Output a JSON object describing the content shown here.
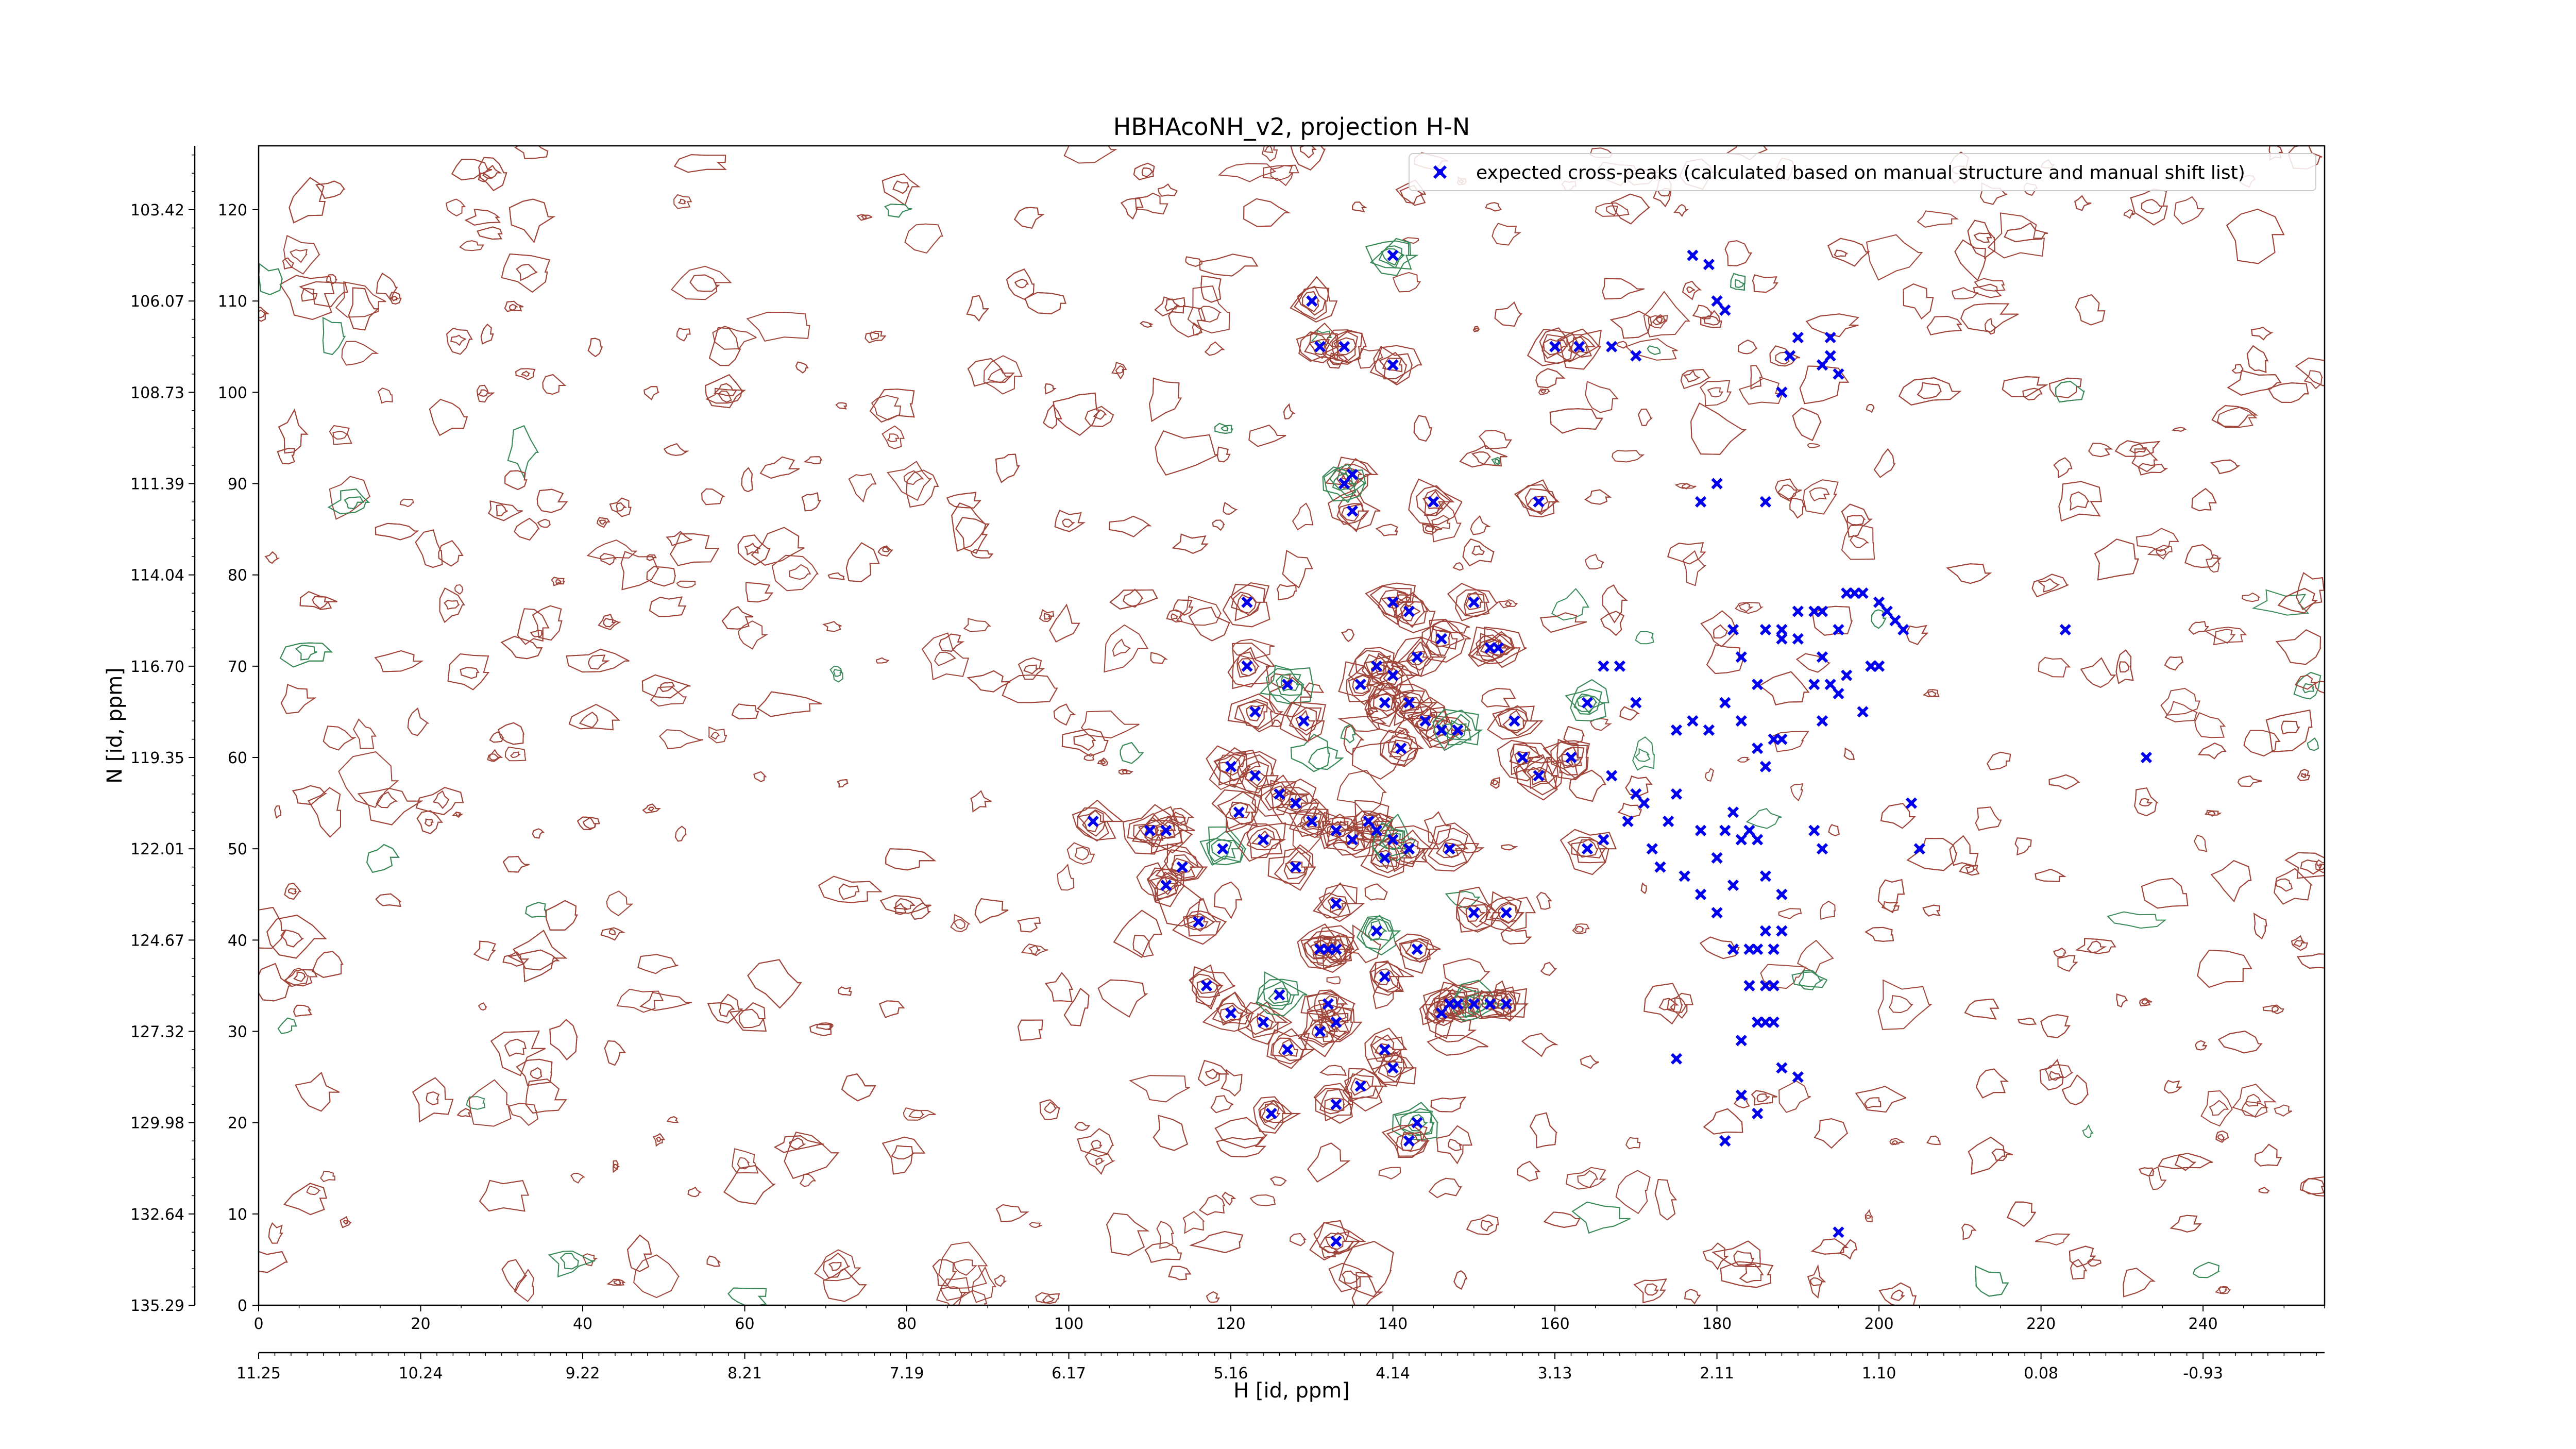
{
  "chart_data": {
    "type": "scatter",
    "title": "HBHAcoNH_v2, projection H-N",
    "xlabel": "H [id, ppm]",
    "ylabel": "N [id, ppm]",
    "x_index_ticks": [
      "0",
      "20",
      "40",
      "60",
      "80",
      "100",
      "120",
      "140",
      "160",
      "180",
      "200",
      "220",
      "240"
    ],
    "x_ppm_ticks": [
      "11.25",
      "10.24",
      "9.22",
      "8.21",
      "7.19",
      "6.17",
      "5.16",
      "4.14",
      "3.13",
      "2.11",
      "1.10",
      "0.08",
      "-0.93"
    ],
    "y_index_ticks": [
      "0",
      "10",
      "20",
      "30",
      "40",
      "50",
      "60",
      "70",
      "80",
      "90",
      "100",
      "110",
      "120"
    ],
    "y_ppm_ticks": [
      "135.29",
      "132.64",
      "129.98",
      "127.32",
      "124.67",
      "122.01",
      "119.35",
      "116.70",
      "114.04",
      "111.39",
      "108.73",
      "106.07",
      "103.42"
    ],
    "xlim": [
      0,
      255
    ],
    "ylim": [
      0,
      127
    ],
    "grid": false,
    "legend_position": "top-right",
    "series": [
      {
        "name": "expected cross-peaks (calculated based on manual structure and manual shift list)",
        "marker": "x",
        "color": "#0000ee",
        "points": [
          [
            140,
            115
          ],
          [
            130,
            110
          ],
          [
            131,
            105
          ],
          [
            134,
            105
          ],
          [
            140,
            103
          ],
          [
            194,
            104
          ],
          [
            194,
            106
          ],
          [
            135,
            91
          ],
          [
            135,
            87
          ],
          [
            134,
            90
          ],
          [
            145,
            88
          ],
          [
            158,
            88
          ],
          [
            122,
            77
          ],
          [
            140,
            77
          ],
          [
            142,
            76
          ],
          [
            146,
            73
          ],
          [
            150,
            77
          ],
          [
            122,
            70
          ],
          [
            127,
            68
          ],
          [
            138,
            70
          ],
          [
            140,
            69
          ],
          [
            143,
            71
          ],
          [
            136,
            68
          ],
          [
            139,
            66
          ],
          [
            142,
            66
          ],
          [
            144,
            64
          ],
          [
            146,
            63
          ],
          [
            148,
            63
          ],
          [
            152,
            72
          ],
          [
            153,
            72
          ],
          [
            155,
            64
          ],
          [
            156,
            60
          ],
          [
            158,
            58
          ],
          [
            123,
            65
          ],
          [
            129,
            64
          ],
          [
            141,
            61
          ],
          [
            164,
            66
          ],
          [
            166,
            70
          ],
          [
            168,
            70
          ],
          [
            170,
            66
          ],
          [
            120,
            59
          ],
          [
            123,
            58
          ],
          [
            126,
            56
          ],
          [
            128,
            55
          ],
          [
            130,
            53
          ],
          [
            119,
            50
          ],
          [
            121,
            54
          ],
          [
            124,
            51
          ],
          [
            128,
            48
          ],
          [
            133,
            52
          ],
          [
            135,
            51
          ],
          [
            137,
            53
          ],
          [
            138,
            52
          ],
          [
            139,
            49
          ],
          [
            140,
            51
          ],
          [
            142,
            50
          ],
          [
            147,
            50
          ],
          [
            110,
            52
          ],
          [
            112,
            52
          ],
          [
            114,
            48
          ],
          [
            112,
            46
          ],
          [
            116,
            42
          ],
          [
            103,
            53
          ],
          [
            138,
            41
          ],
          [
            139,
            36
          ],
          [
            143,
            39
          ],
          [
            133,
            44
          ],
          [
            132,
            39
          ],
          [
            133,
            39
          ],
          [
            131,
            39
          ],
          [
            147,
            33
          ],
          [
            148,
            33
          ],
          [
            150,
            33
          ],
          [
            152,
            33
          ],
          [
            154,
            33
          ],
          [
            146,
            32
          ],
          [
            154,
            43
          ],
          [
            150,
            43
          ],
          [
            117,
            35
          ],
          [
            120,
            32
          ],
          [
            124,
            31
          ],
          [
            126,
            34
          ],
          [
            127,
            28
          ],
          [
            131,
            30
          ],
          [
            132,
            33
          ],
          [
            133,
            31
          ],
          [
            139,
            28
          ],
          [
            133,
            22
          ],
          [
            136,
            24
          ],
          [
            140,
            26
          ],
          [
            143,
            20
          ],
          [
            142,
            18
          ],
          [
            125,
            21
          ],
          [
            133,
            7
          ],
          [
            164,
            50
          ],
          [
            166,
            51
          ],
          [
            169,
            53
          ],
          [
            171,
            55
          ],
          [
            172,
            50
          ],
          [
            173,
            48
          ],
          [
            174,
            53
          ],
          [
            175,
            56
          ],
          [
            178,
            52
          ],
          [
            181,
            52
          ],
          [
            182,
            54
          ],
          [
            183,
            51
          ],
          [
            184,
            52
          ],
          [
            185,
            51
          ],
          [
            180,
            49
          ],
          [
            182,
            46
          ],
          [
            176,
            47
          ],
          [
            178,
            45
          ],
          [
            180,
            43
          ],
          [
            186,
            47
          ],
          [
            188,
            45
          ],
          [
            192,
            52
          ],
          [
            193,
            50
          ],
          [
            204,
            55
          ],
          [
            205,
            50
          ],
          [
            182,
            39
          ],
          [
            184,
            39
          ],
          [
            185,
            39
          ],
          [
            186,
            41
          ],
          [
            187,
            39
          ],
          [
            188,
            41
          ],
          [
            184,
            35
          ],
          [
            186,
            35
          ],
          [
            187,
            35
          ],
          [
            183,
            29
          ],
          [
            185,
            31
          ],
          [
            186,
            31
          ],
          [
            187,
            31
          ],
          [
            183,
            23
          ],
          [
            181,
            18
          ],
          [
            188,
            26
          ],
          [
            190,
            25
          ],
          [
            185,
            21
          ],
          [
            175,
            27
          ],
          [
            177,
            64
          ],
          [
            179,
            63
          ],
          [
            181,
            66
          ],
          [
            183,
            64
          ],
          [
            185,
            61
          ],
          [
            186,
            59
          ],
          [
            187,
            62
          ],
          [
            188,
            62
          ],
          [
            188,
            73
          ],
          [
            190,
            73
          ],
          [
            192,
            68
          ],
          [
            193,
            64
          ],
          [
            195,
            67
          ],
          [
            198,
            65
          ],
          [
            196,
            69
          ],
          [
            199,
            70
          ],
          [
            200,
            70
          ],
          [
            185,
            68
          ],
          [
            183,
            71
          ],
          [
            182,
            74
          ],
          [
            186,
            74
          ],
          [
            188,
            74
          ],
          [
            190,
            76
          ],
          [
            192,
            76
          ],
          [
            193,
            76
          ],
          [
            195,
            74
          ],
          [
            193,
            71
          ],
          [
            194,
            68
          ],
          [
            196,
            78
          ],
          [
            197,
            78
          ],
          [
            200,
            77
          ],
          [
            198,
            78
          ],
          [
            201,
            76
          ],
          [
            202,
            75
          ],
          [
            203,
            74
          ],
          [
            188,
            100
          ],
          [
            189,
            104
          ],
          [
            190,
            106
          ],
          [
            193,
            103
          ],
          [
            195,
            102
          ],
          [
            178,
            88
          ],
          [
            180,
            90
          ],
          [
            186,
            88
          ],
          [
            177,
            115
          ],
          [
            179,
            114
          ],
          [
            181,
            109
          ],
          [
            180,
            110
          ],
          [
            160,
            105
          ],
          [
            163,
            105
          ],
          [
            167,
            105
          ],
          [
            170,
            104
          ],
          [
            223,
            74
          ],
          [
            233,
            60
          ],
          [
            195,
            8
          ],
          [
            175,
            63
          ],
          [
            162,
            60
          ],
          [
            167,
            58
          ],
          [
            170,
            56
          ]
        ]
      }
    ]
  }
}
